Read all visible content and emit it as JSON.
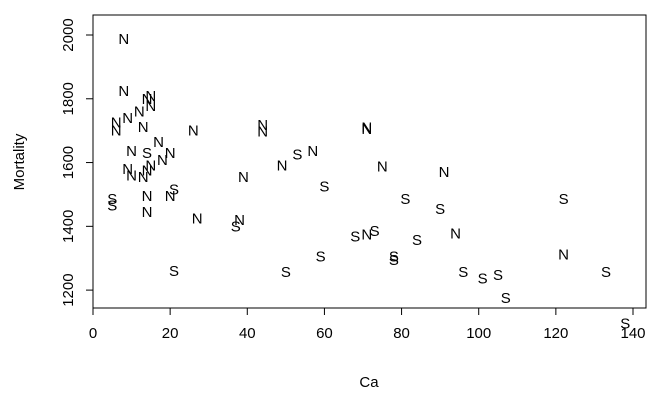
{
  "chart_data": {
    "type": "scatter",
    "title": "",
    "xlabel": "Ca",
    "ylabel": "Mortality",
    "xlim": [
      0,
      140
    ],
    "ylim": [
      1100,
      2000
    ],
    "xticks": [
      0,
      20,
      40,
      60,
      80,
      100,
      120,
      140
    ],
    "yticks": [
      1200,
      1400,
      1600,
      1800,
      2000
    ],
    "grid": false,
    "legend": "none",
    "points": [
      {
        "x": 8,
        "y": 1987,
        "label": "N"
      },
      {
        "x": 8,
        "y": 1825,
        "label": "N"
      },
      {
        "x": 14,
        "y": 1800,
        "label": "N"
      },
      {
        "x": 15,
        "y": 1808,
        "label": "N"
      },
      {
        "x": 15,
        "y": 1778,
        "label": "N"
      },
      {
        "x": 12,
        "y": 1760,
        "label": "N"
      },
      {
        "x": 9,
        "y": 1740,
        "label": "N"
      },
      {
        "x": 6,
        "y": 1725,
        "label": "N"
      },
      {
        "x": 6,
        "y": 1700,
        "label": "N"
      },
      {
        "x": 13,
        "y": 1712,
        "label": "N"
      },
      {
        "x": 26,
        "y": 1700,
        "label": "N"
      },
      {
        "x": 44,
        "y": 1718,
        "label": "N"
      },
      {
        "x": 44,
        "y": 1698,
        "label": "N"
      },
      {
        "x": 71,
        "y": 1710,
        "label": "N"
      },
      {
        "x": 71,
        "y": 1705,
        "label": "N"
      },
      {
        "x": 17,
        "y": 1665,
        "label": "N"
      },
      {
        "x": 10,
        "y": 1637,
        "label": "N"
      },
      {
        "x": 14,
        "y": 1630,
        "label": "S"
      },
      {
        "x": 20,
        "y": 1630,
        "label": "N"
      },
      {
        "x": 18,
        "y": 1608,
        "label": "N"
      },
      {
        "x": 15,
        "y": 1590,
        "label": "N"
      },
      {
        "x": 14,
        "y": 1575,
        "label": "N"
      },
      {
        "x": 9,
        "y": 1580,
        "label": "N"
      },
      {
        "x": 10,
        "y": 1560,
        "label": "N"
      },
      {
        "x": 13,
        "y": 1555,
        "label": "N"
      },
      {
        "x": 53,
        "y": 1625,
        "label": "S"
      },
      {
        "x": 57,
        "y": 1637,
        "label": "N"
      },
      {
        "x": 49,
        "y": 1591,
        "label": "N"
      },
      {
        "x": 75,
        "y": 1587,
        "label": "N"
      },
      {
        "x": 91,
        "y": 1570,
        "label": "N"
      },
      {
        "x": 39,
        "y": 1555,
        "label": "N"
      },
      {
        "x": 60,
        "y": 1525,
        "label": "S"
      },
      {
        "x": 21,
        "y": 1515,
        "label": "S"
      },
      {
        "x": 20,
        "y": 1495,
        "label": "N"
      },
      {
        "x": 14,
        "y": 1495,
        "label": "N"
      },
      {
        "x": 5,
        "y": 1485,
        "label": "S"
      },
      {
        "x": 5,
        "y": 1465,
        "label": "S"
      },
      {
        "x": 14,
        "y": 1445,
        "label": "N"
      },
      {
        "x": 81,
        "y": 1485,
        "label": "S"
      },
      {
        "x": 90,
        "y": 1455,
        "label": "S"
      },
      {
        "x": 122,
        "y": 1485,
        "label": "S"
      },
      {
        "x": 27,
        "y": 1425,
        "label": "N"
      },
      {
        "x": 38,
        "y": 1420,
        "label": "N"
      },
      {
        "x": 37,
        "y": 1400,
        "label": "S"
      },
      {
        "x": 73,
        "y": 1385,
        "label": "S"
      },
      {
        "x": 71,
        "y": 1375,
        "label": "N"
      },
      {
        "x": 68,
        "y": 1368,
        "label": "S"
      },
      {
        "x": 84,
        "y": 1357,
        "label": "S"
      },
      {
        "x": 94,
        "y": 1378,
        "label": "N"
      },
      {
        "x": 59,
        "y": 1305,
        "label": "S"
      },
      {
        "x": 78,
        "y": 1305,
        "label": "S"
      },
      {
        "x": 78,
        "y": 1295,
        "label": "S"
      },
      {
        "x": 122,
        "y": 1312,
        "label": "N"
      },
      {
        "x": 21,
        "y": 1260,
        "label": "S"
      },
      {
        "x": 50,
        "y": 1257,
        "label": "S"
      },
      {
        "x": 96,
        "y": 1257,
        "label": "S"
      },
      {
        "x": 101,
        "y": 1237,
        "label": "S"
      },
      {
        "x": 105,
        "y": 1248,
        "label": "S"
      },
      {
        "x": 133,
        "y": 1257,
        "label": "S"
      },
      {
        "x": 107,
        "y": 1175,
        "label": "S"
      },
      {
        "x": 138,
        "y": 1096,
        "label": "S"
      }
    ]
  }
}
